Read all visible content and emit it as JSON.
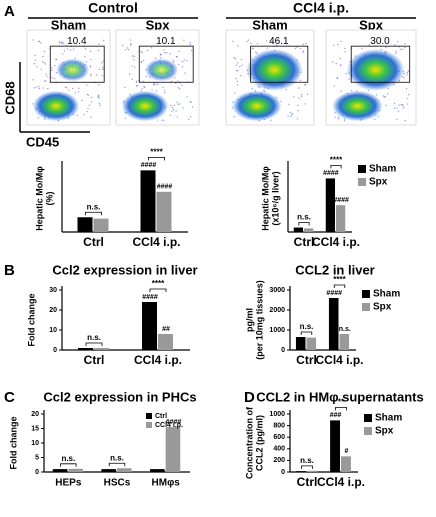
{
  "panel_labels": [
    "A",
    "B",
    "C",
    "D"
  ],
  "flow": {
    "groups": [
      "Control",
      "CCl4 i.p."
    ],
    "columns": [
      "Sham",
      "Spx",
      "Sham",
      "Spx"
    ],
    "gate_labels": [
      "10.4",
      "10.1",
      "46.1",
      "30.0"
    ],
    "ylabel": "CD68",
    "xlabel": "CD45"
  },
  "chart_data": [
    {
      "type": "bar",
      "ylabel": [
        "Hepatic Mo/Mφ",
        "(%)"
      ],
      "categories": [
        "Ctrl",
        "CCl4 i.p."
      ],
      "ylim": [
        0,
        50
      ],
      "series": [
        {
          "name": "Sham",
          "color": "#000000",
          "values": [
            11,
            46
          ],
          "annotations": [
            null,
            "####"
          ]
        },
        {
          "name": "Spx",
          "color": "#999999",
          "values": [
            10,
            30
          ],
          "annotations": [
            null,
            "####"
          ]
        }
      ],
      "comparisons": [
        "n.s.",
        "****"
      ]
    },
    {
      "type": "bar",
      "ylabel": [
        "Hepatic Mo/Mφ",
        "(x10⁶/g liver)"
      ],
      "categories": [
        "Ctrl",
        "CCl4 i.p."
      ],
      "ylim": [
        0,
        1.5
      ],
      "series": [
        {
          "name": "Sham",
          "color": "#000000",
          "values": [
            0.1,
            1.2
          ],
          "annotations": [
            null,
            "####"
          ]
        },
        {
          "name": "Spx",
          "color": "#999999",
          "values": [
            0.08,
            0.6
          ],
          "annotations": [
            null,
            "####"
          ]
        }
      ],
      "comparisons": [
        "n.s.",
        "****"
      ],
      "legend": "right"
    },
    {
      "type": "bar",
      "title": "Ccl2 expression in liver",
      "ylabel": [
        "Fold change"
      ],
      "categories": [
        "Ctrl",
        "CCl4 i.p."
      ],
      "ylim": [
        0,
        30
      ],
      "yticks": [
        0,
        10,
        20,
        30
      ],
      "series": [
        {
          "name": "Sham",
          "color": "#000000",
          "values": [
            1,
            24
          ],
          "annotations": [
            null,
            "####"
          ]
        },
        {
          "name": "Spx",
          "color": "#999999",
          "values": [
            1,
            8
          ],
          "annotations": [
            null,
            "##"
          ]
        }
      ],
      "comparisons": [
        "n.s.",
        "****"
      ]
    },
    {
      "type": "bar",
      "title": "CCL2 in liver",
      "ylabel": [
        "pg/ml",
        "(per 10mg tissues)"
      ],
      "categories": [
        "Ctrl",
        "CCl4 i.p."
      ],
      "ylim": [
        0,
        3000
      ],
      "yticks": [
        0,
        1000,
        2000,
        3000
      ],
      "series": [
        {
          "name": "Sham",
          "color": "#000000",
          "values": [
            650,
            2600
          ],
          "annotations": [
            null,
            "####"
          ]
        },
        {
          "name": "Spx",
          "color": "#999999",
          "values": [
            620,
            800
          ],
          "annotations": [
            null,
            "n.s."
          ]
        }
      ],
      "comparisons": [
        "n.s.",
        "****"
      ],
      "legend": "right"
    },
    {
      "type": "bar",
      "title": "Ccl2 expression in PHCs",
      "ylabel": [
        "Fold change"
      ],
      "categories": [
        "HEPs",
        "HSCs",
        "HMφs"
      ],
      "ylim": [
        0,
        20
      ],
      "yticks": [
        0,
        5,
        10,
        15,
        20
      ],
      "series": [
        {
          "name": "Ctrl",
          "color": "#000000",
          "values": [
            1,
            1,
            1
          ],
          "annotations": [
            null,
            null,
            null
          ]
        },
        {
          "name": "CCl4 i.p.",
          "color": "#999999",
          "values": [
            1.1,
            1.3,
            15.5
          ],
          "annotations": [
            null,
            null,
            "####"
          ]
        }
      ],
      "comparisons": [
        "n.s.",
        "n.s.",
        null
      ],
      "legend": "upper right"
    },
    {
      "type": "bar",
      "title": "CCL2 in HMφ supernatants",
      "ylabel": [
        "Concentration of",
        "CCL2 (pg/ml)"
      ],
      "categories": [
        "Ctrl",
        "CCl4 i.p."
      ],
      "ylim": [
        0,
        1000
      ],
      "yticks": [
        0,
        200,
        400,
        600,
        800,
        1000
      ],
      "series": [
        {
          "name": "Sham",
          "color": "#000000",
          "values": [
            15,
            890
          ],
          "annotations": [
            null,
            "###"
          ]
        },
        {
          "name": "Spx",
          "color": "#999999",
          "values": [
            20,
            270
          ],
          "annotations": [
            null,
            "#"
          ]
        }
      ],
      "comparisons": [
        "n.s.",
        "**"
      ],
      "legend": "right"
    }
  ]
}
